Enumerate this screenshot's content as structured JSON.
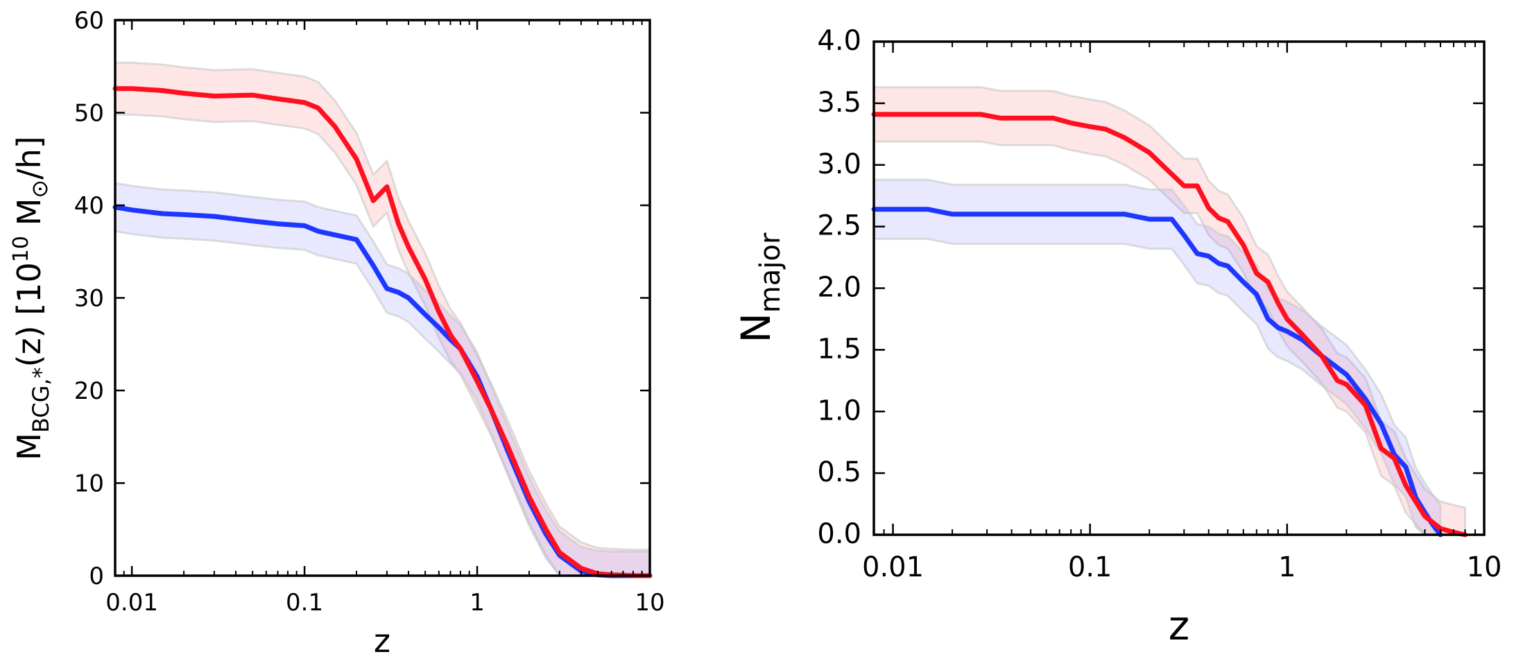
{
  "chart_data": [
    {
      "type": "line",
      "xscale": "log",
      "xlim": [
        0.008,
        10
      ],
      "ylim": [
        0,
        60
      ],
      "xlabel": "z",
      "ylabel": {
        "main": "M",
        "sub": "BCG,*",
        "mid": "(z) [10",
        "sup": "10",
        "unit": " M",
        "sun": "⊙",
        "tail": "/h]"
      },
      "xticks": [
        0.01,
        0.1,
        1,
        10
      ],
      "xtick_labels": [
        "0.01",
        "0.1",
        "1",
        "10"
      ],
      "yticks": [
        0,
        10,
        20,
        30,
        40,
        50,
        60
      ],
      "ytick_labels": [
        "0",
        "10",
        "20",
        "30",
        "40",
        "50",
        "60"
      ],
      "series": [
        {
          "name": "red",
          "color": "#ff1020",
          "band_color": "#ff8080",
          "x": [
            0.008,
            0.01,
            0.015,
            0.02,
            0.03,
            0.05,
            0.07,
            0.1,
            0.12,
            0.15,
            0.2,
            0.25,
            0.3,
            0.35,
            0.4,
            0.5,
            0.6,
            0.7,
            0.8,
            1.0,
            1.2,
            1.5,
            2.0,
            2.5,
            3.0,
            4.0,
            5.0,
            6.0,
            8.0,
            10.0
          ],
          "values": [
            52.6,
            52.6,
            52.4,
            52.1,
            51.8,
            51.9,
            51.5,
            51.1,
            50.5,
            48.5,
            45.0,
            40.5,
            42.0,
            38.0,
            35.5,
            32.0,
            28.5,
            26.0,
            24.5,
            21.0,
            18.0,
            14.0,
            8.5,
            5.0,
            2.5,
            0.8,
            0.2,
            0.1,
            0.0,
            0.0
          ],
          "band": 2.8
        },
        {
          "name": "blue",
          "color": "#1e37ff",
          "band_color": "#8a8aff",
          "x": [
            0.008,
            0.01,
            0.015,
            0.02,
            0.03,
            0.05,
            0.07,
            0.1,
            0.12,
            0.15,
            0.2,
            0.25,
            0.3,
            0.35,
            0.4,
            0.5,
            0.6,
            0.7,
            0.8,
            1.0,
            1.2,
            1.5,
            2.0,
            2.5,
            3.0,
            4.0,
            5.0,
            6.0,
            8.0,
            10.0
          ],
          "values": [
            39.8,
            39.5,
            39.1,
            39.0,
            38.8,
            38.3,
            38.0,
            37.8,
            37.2,
            36.8,
            36.3,
            33.5,
            31.0,
            30.6,
            30.0,
            28.2,
            26.8,
            25.5,
            24.5,
            21.5,
            18.0,
            13.5,
            8.0,
            4.5,
            2.2,
            0.5,
            0.1,
            0.0,
            0.0,
            0.0
          ],
          "band": 2.6
        }
      ]
    },
    {
      "type": "line",
      "xscale": "log",
      "xlim": [
        0.008,
        10
      ],
      "ylim": [
        0,
        4.0
      ],
      "xlabel": "z",
      "ylabel": {
        "main": "N",
        "sub": "major"
      },
      "xticks": [
        0.01,
        0.1,
        1,
        10
      ],
      "xtick_labels": [
        "0.01",
        "0.1",
        "1",
        "10"
      ],
      "yticks": [
        0,
        0.5,
        1.0,
        1.5,
        2.0,
        2.5,
        3.0,
        3.5,
        4.0
      ],
      "ytick_labels": [
        "0.0",
        "0.5",
        "1.0",
        "1.5",
        "2.0",
        "2.5",
        "3.0",
        "3.5",
        "4.0"
      ],
      "series": [
        {
          "name": "red",
          "color": "#ff1020",
          "band_color": "#ff8080",
          "x": [
            0.008,
            0.028,
            0.035,
            0.065,
            0.08,
            0.1,
            0.12,
            0.15,
            0.2,
            0.25,
            0.3,
            0.35,
            0.4,
            0.45,
            0.5,
            0.6,
            0.7,
            0.8,
            0.9,
            1.0,
            1.2,
            1.5,
            1.8,
            2.0,
            2.5,
            3.0,
            3.5,
            4.0,
            5.0,
            6.0,
            7.0,
            8.0
          ],
          "values": [
            3.41,
            3.41,
            3.38,
            3.38,
            3.34,
            3.31,
            3.29,
            3.22,
            3.1,
            2.95,
            2.83,
            2.83,
            2.65,
            2.57,
            2.54,
            2.35,
            2.12,
            2.05,
            1.88,
            1.75,
            1.62,
            1.45,
            1.25,
            1.22,
            1.05,
            0.7,
            0.62,
            0.4,
            0.15,
            0.05,
            0.02,
            0.0
          ],
          "band": 0.22
        },
        {
          "name": "blue",
          "color": "#1e37ff",
          "band_color": "#8a8aff",
          "x": [
            0.008,
            0.015,
            0.02,
            0.1,
            0.15,
            0.2,
            0.26,
            0.3,
            0.35,
            0.4,
            0.45,
            0.5,
            0.6,
            0.7,
            0.8,
            0.9,
            1.0,
            1.2,
            1.5,
            2.0,
            2.5,
            3.0,
            3.5,
            4.0,
            4.5,
            5.0,
            5.5,
            6.0
          ],
          "values": [
            2.64,
            2.64,
            2.6,
            2.6,
            2.6,
            2.56,
            2.56,
            2.43,
            2.28,
            2.26,
            2.2,
            2.18,
            2.05,
            1.95,
            1.75,
            1.68,
            1.65,
            1.58,
            1.45,
            1.3,
            1.1,
            0.9,
            0.65,
            0.55,
            0.3,
            0.18,
            0.08,
            0.0
          ],
          "band": 0.24
        }
      ]
    }
  ]
}
